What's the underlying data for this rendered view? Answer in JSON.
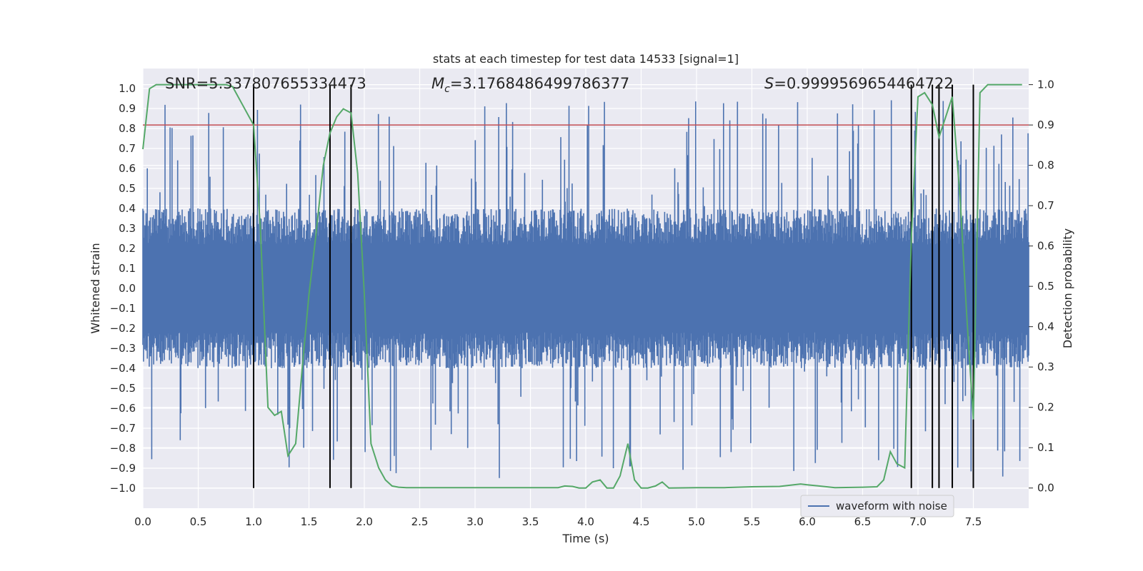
{
  "chart_data": {
    "type": "line",
    "title": "stats at each timestep for test data 14533 [signal=1]",
    "xlabel": "Time (s)",
    "ylabel": "Whitened strain",
    "y2label": "Detection probability",
    "xlim": [
      0,
      8
    ],
    "ylim": [
      -1.1,
      1.1
    ],
    "y2lim": [
      -0.05,
      1.04
    ],
    "x_ticks": [
      "0.0",
      "0.5",
      "1.0",
      "1.5",
      "2.0",
      "2.5",
      "3.0",
      "3.5",
      "4.0",
      "4.5",
      "5.0",
      "5.5",
      "6.0",
      "6.5",
      "7.0",
      "7.5"
    ],
    "y_ticks": [
      "1.0",
      "0.9",
      "0.8",
      "0.7",
      "0.6",
      "0.5",
      "0.4",
      "0.3",
      "0.2",
      "0.1",
      "0.0",
      "−0.1",
      "−0.2",
      "−0.3",
      "−0.4",
      "−0.5",
      "−0.6",
      "−0.7",
      "−0.8",
      "−0.9",
      "−1.0"
    ],
    "y2_ticks": [
      "1.0",
      "0.9",
      "0.8",
      "0.7",
      "0.6",
      "0.5",
      "0.4",
      "0.3",
      "0.2",
      "0.1",
      "0.0"
    ],
    "grid": true,
    "legend": {
      "placement": "lower-right",
      "entries": [
        "waveform with noise"
      ]
    },
    "annotations": {
      "snr": "SNR=5.337807655334473",
      "mc_symbol": "M",
      "mc_sub": "c",
      "mc_value": "=3.1768486499786377",
      "s_symbol": "S",
      "s_value": "=0.9999569654464722"
    },
    "threshold": {
      "value": 0.9,
      "axis": "y2",
      "color": "#c44e52"
    },
    "vertical_markers": [
      1.0,
      1.69,
      1.88,
      6.94,
      7.13,
      7.19,
      7.31,
      7.5
    ],
    "series": [
      {
        "name": "waveform with noise",
        "axis": "y",
        "color": "#4c72b0",
        "kind": "noise-waveform",
        "n_samples": 1400,
        "typical_amplitude": [
          -0.4,
          0.4
        ],
        "peak_range": [
          -1.0,
          0.97
        ]
      },
      {
        "axis": "y2",
        "color": "#55a868",
        "x": [
          0.0,
          0.06,
          0.12,
          0.18,
          0.25,
          0.31,
          0.37,
          0.44,
          0.5,
          0.56,
          0.62,
          0.69,
          0.75,
          0.81,
          0.88,
          0.94,
          1.0,
          1.06,
          1.13,
          1.19,
          1.25,
          1.31,
          1.38,
          1.44,
          1.5,
          1.56,
          1.63,
          1.69,
          1.75,
          1.81,
          1.88,
          1.94,
          2.0,
          2.06,
          2.13,
          2.19,
          2.25,
          2.31,
          2.38,
          2.5,
          2.75,
          3.0,
          3.25,
          3.5,
          3.75,
          3.81,
          3.88,
          3.94,
          4.0,
          4.06,
          4.13,
          4.19,
          4.25,
          4.31,
          4.38,
          4.44,
          4.5,
          4.56,
          4.63,
          4.69,
          4.75,
          5.0,
          5.25,
          5.5,
          5.75,
          5.94,
          6.0,
          6.25,
          6.5,
          6.63,
          6.69,
          6.75,
          6.81,
          6.88,
          6.94,
          7.0,
          7.06,
          7.13,
          7.19,
          7.25,
          7.31,
          7.38,
          7.44,
          7.5,
          7.56,
          7.63,
          7.75,
          7.94
        ],
        "values": [
          0.84,
          0.99,
          1.0,
          1.0,
          1.0,
          1.0,
          1.0,
          1.0,
          1.0,
          1.0,
          1.0,
          1.0,
          1.0,
          0.995,
          0.96,
          0.93,
          0.9,
          0.65,
          0.2,
          0.18,
          0.19,
          0.08,
          0.11,
          0.3,
          0.48,
          0.62,
          0.8,
          0.88,
          0.92,
          0.94,
          0.93,
          0.78,
          0.48,
          0.11,
          0.05,
          0.02,
          0.005,
          0.002,
          0.001,
          0.001,
          0.001,
          0.001,
          0.001,
          0.001,
          0.001,
          0.005,
          0.004,
          0.0,
          0.0,
          0.015,
          0.02,
          0.0,
          0.0,
          0.03,
          0.11,
          0.02,
          0.0,
          0.0,
          0.005,
          0.015,
          0.0,
          0.001,
          0.001,
          0.003,
          0.004,
          0.01,
          0.008,
          0.001,
          0.002,
          0.003,
          0.02,
          0.09,
          0.06,
          0.05,
          0.62,
          0.97,
          0.98,
          0.95,
          0.87,
          0.92,
          0.97,
          0.72,
          0.43,
          0.17,
          0.98,
          1.0,
          1.0,
          1.0
        ]
      }
    ]
  }
}
